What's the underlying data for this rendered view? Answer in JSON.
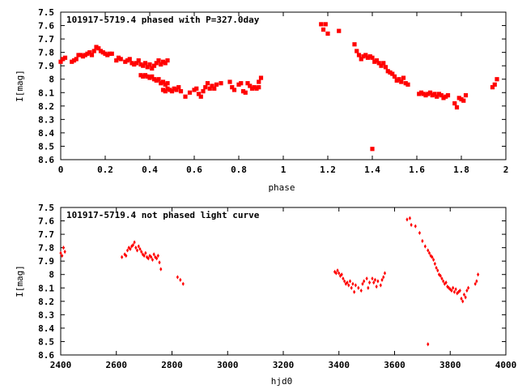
{
  "chart_data": [
    {
      "type": "scatter",
      "title": "101917-5719.4 phased with P=327.0day",
      "xlabel": "phase",
      "ylabel": "I[mag]",
      "xlim": [
        0,
        2
      ],
      "ylim": [
        7.5,
        8.6
      ],
      "y_inverted": true,
      "x_ticks": [
        "0",
        "0.2",
        "0.4",
        "0.6",
        "0.8",
        "1",
        "1.2",
        "1.4",
        "1.6",
        "1.8",
        "2"
      ],
      "y_ticks": [
        "7.5",
        "7.6",
        "7.7",
        "7.8",
        "7.9",
        "8",
        "8.1",
        "8.2",
        "8.3",
        "8.4",
        "8.5",
        "8.6"
      ],
      "marker_color": "#ff0000",
      "grid": false,
      "points": [
        [
          0.0,
          7.87
        ],
        [
          0.01,
          7.85
        ],
        [
          0.02,
          7.84
        ],
        [
          0.05,
          7.87
        ],
        [
          0.06,
          7.86
        ],
        [
          0.07,
          7.85
        ],
        [
          0.08,
          7.82
        ],
        [
          0.09,
          7.82
        ],
        [
          0.1,
          7.83
        ],
        [
          0.11,
          7.82
        ],
        [
          0.12,
          7.81
        ],
        [
          0.13,
          7.8
        ],
        [
          0.14,
          7.82
        ],
        [
          0.15,
          7.79
        ],
        [
          0.16,
          7.76
        ],
        [
          0.17,
          7.77
        ],
        [
          0.18,
          7.79
        ],
        [
          0.19,
          7.8
        ],
        [
          0.2,
          7.81
        ],
        [
          0.21,
          7.82
        ],
        [
          0.22,
          7.81
        ],
        [
          0.23,
          7.81
        ],
        [
          0.25,
          7.86
        ],
        [
          0.26,
          7.84
        ],
        [
          0.27,
          7.85
        ],
        [
          0.29,
          7.87
        ],
        [
          0.3,
          7.86
        ],
        [
          0.31,
          7.85
        ],
        [
          0.32,
          7.88
        ],
        [
          0.33,
          7.89
        ],
        [
          0.34,
          7.88
        ],
        [
          0.35,
          7.86
        ],
        [
          0.36,
          7.89
        ],
        [
          0.37,
          7.9
        ],
        [
          0.38,
          7.88
        ],
        [
          0.39,
          7.91
        ],
        [
          0.4,
          7.89
        ],
        [
          0.41,
          7.92
        ],
        [
          0.42,
          7.9
        ],
        [
          0.43,
          7.88
        ],
        [
          0.44,
          7.86
        ],
        [
          0.45,
          7.89
        ],
        [
          0.46,
          7.87
        ],
        [
          0.47,
          7.88
        ],
        [
          0.48,
          7.86
        ],
        [
          0.36,
          7.97
        ],
        [
          0.37,
          7.98
        ],
        [
          0.38,
          7.97
        ],
        [
          0.39,
          7.98
        ],
        [
          0.4,
          7.99
        ],
        [
          0.41,
          7.98
        ],
        [
          0.42,
          8.0
        ],
        [
          0.43,
          8.01
        ],
        [
          0.44,
          8.0
        ],
        [
          0.45,
          8.03
        ],
        [
          0.46,
          8.02
        ],
        [
          0.47,
          8.04
        ],
        [
          0.48,
          8.03
        ],
        [
          0.46,
          8.08
        ],
        [
          0.47,
          8.09
        ],
        [
          0.48,
          8.07
        ],
        [
          0.49,
          8.08
        ],
        [
          0.5,
          8.09
        ],
        [
          0.51,
          8.07
        ],
        [
          0.52,
          8.08
        ],
        [
          0.53,
          8.06
        ],
        [
          0.54,
          8.09
        ],
        [
          0.56,
          8.13
        ],
        [
          0.58,
          8.1
        ],
        [
          0.6,
          8.08
        ],
        [
          0.61,
          8.07
        ],
        [
          0.62,
          8.11
        ],
        [
          0.63,
          8.13
        ],
        [
          0.64,
          8.09
        ],
        [
          0.65,
          8.06
        ],
        [
          0.66,
          8.03
        ],
        [
          0.67,
          8.07
        ],
        [
          0.68,
          8.05
        ],
        [
          0.69,
          8.07
        ],
        [
          0.7,
          8.04
        ],
        [
          0.72,
          8.03
        ],
        [
          0.76,
          8.02
        ],
        [
          0.77,
          8.06
        ],
        [
          0.78,
          8.08
        ],
        [
          0.8,
          8.04
        ],
        [
          0.81,
          8.03
        ],
        [
          0.82,
          8.09
        ],
        [
          0.83,
          8.1
        ],
        [
          0.84,
          8.03
        ],
        [
          0.85,
          8.05
        ],
        [
          0.86,
          8.07
        ],
        [
          0.87,
          8.06
        ],
        [
          0.88,
          8.07
        ],
        [
          0.89,
          8.06
        ],
        [
          0.89,
          8.02
        ],
        [
          0.9,
          7.99
        ],
        [
          1.17,
          7.59
        ],
        [
          1.18,
          7.63
        ],
        [
          1.19,
          7.59
        ],
        [
          1.2,
          7.66
        ],
        [
          1.25,
          7.64
        ],
        [
          1.32,
          7.74
        ],
        [
          1.33,
          7.79
        ],
        [
          1.34,
          7.82
        ],
        [
          1.35,
          7.85
        ],
        [
          1.36,
          7.83
        ],
        [
          1.37,
          7.82
        ],
        [
          1.38,
          7.84
        ],
        [
          1.39,
          7.83
        ],
        [
          1.4,
          7.84
        ],
        [
          1.41,
          7.87
        ],
        [
          1.42,
          7.86
        ],
        [
          1.43,
          7.88
        ],
        [
          1.44,
          7.9
        ],
        [
          1.45,
          7.88
        ],
        [
          1.46,
          7.91
        ],
        [
          1.47,
          7.94
        ],
        [
          1.48,
          7.95
        ],
        [
          1.49,
          7.96
        ],
        [
          1.5,
          7.98
        ],
        [
          1.51,
          8.01
        ],
        [
          1.52,
          8.0
        ],
        [
          1.53,
          8.02
        ],
        [
          1.54,
          7.99
        ],
        [
          1.55,
          8.03
        ],
        [
          1.56,
          8.04
        ],
        [
          1.4,
          8.52
        ],
        [
          1.61,
          8.11
        ],
        [
          1.62,
          8.1
        ],
        [
          1.63,
          8.11
        ],
        [
          1.64,
          8.12
        ],
        [
          1.65,
          8.11
        ],
        [
          1.66,
          8.1
        ],
        [
          1.67,
          8.12
        ],
        [
          1.68,
          8.11
        ],
        [
          1.69,
          8.13
        ],
        [
          1.7,
          8.11
        ],
        [
          1.71,
          8.12
        ],
        [
          1.72,
          8.14
        ],
        [
          1.73,
          8.13
        ],
        [
          1.74,
          8.12
        ],
        [
          1.77,
          8.18
        ],
        [
          1.78,
          8.21
        ],
        [
          1.79,
          8.14
        ],
        [
          1.8,
          8.15
        ],
        [
          1.81,
          8.16
        ],
        [
          1.82,
          8.12
        ],
        [
          1.94,
          8.06
        ],
        [
          1.95,
          8.04
        ],
        [
          1.96,
          8.0
        ]
      ]
    },
    {
      "type": "scatter",
      "title": "101917-5719.4 not phased light curve",
      "xlabel": "hjd0",
      "ylabel": "I[mag]",
      "xlim": [
        2400,
        4000
      ],
      "ylim": [
        7.5,
        8.6
      ],
      "y_inverted": true,
      "x_ticks": [
        "2400",
        "2600",
        "2800",
        "3000",
        "3200",
        "3400",
        "3600",
        "3800",
        "4000"
      ],
      "y_ticks": [
        "7.5",
        "7.6",
        "7.7",
        "7.8",
        "7.9",
        "8",
        "8.1",
        "8.2",
        "8.3",
        "8.4",
        "8.5",
        "8.6"
      ],
      "marker_color": "#ff0000",
      "grid": false,
      "points": [
        [
          2400,
          7.84
        ],
        [
          2405,
          7.86
        ],
        [
          2410,
          7.8
        ],
        [
          2415,
          7.83
        ],
        [
          2620,
          7.87
        ],
        [
          2630,
          7.85
        ],
        [
          2635,
          7.86
        ],
        [
          2640,
          7.82
        ],
        [
          2645,
          7.8
        ],
        [
          2650,
          7.81
        ],
        [
          2655,
          7.79
        ],
        [
          2660,
          7.78
        ],
        [
          2665,
          7.76
        ],
        [
          2670,
          7.8
        ],
        [
          2675,
          7.82
        ],
        [
          2680,
          7.79
        ],
        [
          2685,
          7.81
        ],
        [
          2690,
          7.83
        ],
        [
          2695,
          7.85
        ],
        [
          2700,
          7.86
        ],
        [
          2705,
          7.84
        ],
        [
          2710,
          7.87
        ],
        [
          2715,
          7.88
        ],
        [
          2720,
          7.86
        ],
        [
          2725,
          7.87
        ],
        [
          2730,
          7.89
        ],
        [
          2735,
          7.85
        ],
        [
          2740,
          7.87
        ],
        [
          2745,
          7.88
        ],
        [
          2750,
          7.86
        ],
        [
          2755,
          7.91
        ],
        [
          2760,
          7.96
        ],
        [
          2820,
          8.02
        ],
        [
          2830,
          8.04
        ],
        [
          2840,
          8.07
        ],
        [
          3385,
          7.98
        ],
        [
          3390,
          7.99
        ],
        [
          3395,
          7.97
        ],
        [
          3400,
          7.99
        ],
        [
          3405,
          8.01
        ],
        [
          3410,
          8.0
        ],
        [
          3415,
          8.03
        ],
        [
          3420,
          8.05
        ],
        [
          3425,
          8.07
        ],
        [
          3430,
          8.06
        ],
        [
          3435,
          8.08
        ],
        [
          3440,
          8.05
        ],
        [
          3445,
          8.1
        ],
        [
          3450,
          8.07
        ],
        [
          3455,
          8.13
        ],
        [
          3460,
          8.08
        ],
        [
          3470,
          8.1
        ],
        [
          3480,
          8.12
        ],
        [
          3485,
          8.07
        ],
        [
          3490,
          8.05
        ],
        [
          3500,
          8.03
        ],
        [
          3505,
          8.1
        ],
        [
          3510,
          8.06
        ],
        [
          3520,
          8.03
        ],
        [
          3525,
          8.06
        ],
        [
          3530,
          8.04
        ],
        [
          3535,
          8.09
        ],
        [
          3540,
          8.05
        ],
        [
          3550,
          8.08
        ],
        [
          3555,
          8.04
        ],
        [
          3560,
          8.02
        ],
        [
          3565,
          7.99
        ],
        [
          3645,
          7.59
        ],
        [
          3655,
          7.58
        ],
        [
          3660,
          7.63
        ],
        [
          3675,
          7.64
        ],
        [
          3690,
          7.69
        ],
        [
          3700,
          7.75
        ],
        [
          3710,
          7.79
        ],
        [
          3720,
          7.82
        ],
        [
          3725,
          7.84
        ],
        [
          3730,
          7.86
        ],
        [
          3735,
          7.87
        ],
        [
          3740,
          7.89
        ],
        [
          3745,
          7.92
        ],
        [
          3750,
          7.95
        ],
        [
          3755,
          7.97
        ],
        [
          3760,
          8.0
        ],
        [
          3765,
          8.01
        ],
        [
          3770,
          8.03
        ],
        [
          3775,
          8.05
        ],
        [
          3780,
          8.07
        ],
        [
          3785,
          8.06
        ],
        [
          3790,
          8.09
        ],
        [
          3795,
          8.1
        ],
        [
          3800,
          8.11
        ],
        [
          3805,
          8.12
        ],
        [
          3810,
          8.1
        ],
        [
          3815,
          8.13
        ],
        [
          3820,
          8.11
        ],
        [
          3825,
          8.14
        ],
        [
          3830,
          8.13
        ],
        [
          3835,
          8.12
        ],
        [
          3840,
          8.18
        ],
        [
          3845,
          8.2
        ],
        [
          3850,
          8.15
        ],
        [
          3855,
          8.17
        ],
        [
          3860,
          8.12
        ],
        [
          3865,
          8.1
        ],
        [
          3890,
          8.07
        ],
        [
          3895,
          8.05
        ],
        [
          3900,
          8.0
        ],
        [
          3720,
          8.52
        ]
      ]
    }
  ]
}
